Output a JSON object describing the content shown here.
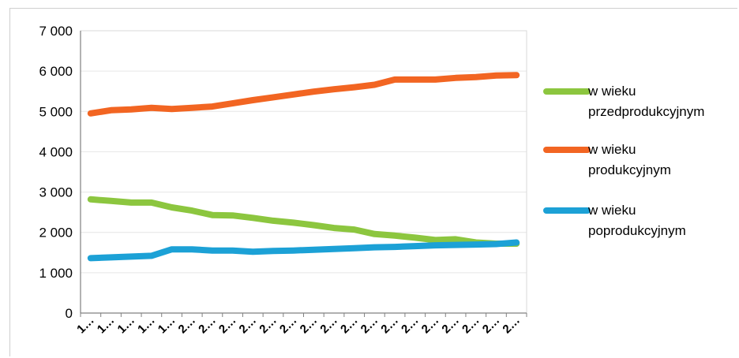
{
  "chart_data": {
    "type": "line",
    "title": "",
    "xlabel": "",
    "ylabel": "",
    "ylim": [
      0,
      7000
    ],
    "yticks": [
      0,
      1000,
      2000,
      3000,
      4000,
      5000,
      6000,
      7000
    ],
    "ytick_labels": [
      "0",
      "1 000",
      "2 000",
      "3 000",
      "4 000",
      "5 000",
      "6 000",
      "7 000"
    ],
    "x_tick_labels": [
      "1…",
      "1…",
      "1…",
      "1…",
      "1…",
      "2…",
      "2…",
      "2…",
      "2…",
      "2…",
      "2…",
      "2…",
      "2…",
      "2…",
      "2…",
      "2…",
      "2…",
      "2…",
      "2…",
      "2…",
      "2…",
      "2…"
    ],
    "grid": true,
    "legend_position": "right",
    "series": [
      {
        "name_lines": [
          "w wieku",
          "przedprodukcyjnym"
        ],
        "color": "#8cc63f",
        "values": [
          2820,
          2780,
          2740,
          2740,
          2620,
          2540,
          2430,
          2420,
          2360,
          2290,
          2240,
          2180,
          2110,
          2070,
          1960,
          1920,
          1870,
          1810,
          1830,
          1750,
          1720,
          1720
        ]
      },
      {
        "name_lines": [
          "w wieku",
          "produkcyjnym"
        ],
        "color": "#f26522",
        "values": [
          4950,
          5030,
          5050,
          5090,
          5060,
          5090,
          5120,
          5200,
          5280,
          5350,
          5420,
          5490,
          5550,
          5600,
          5660,
          5790,
          5790,
          5790,
          5830,
          5850,
          5890,
          5900
        ]
      },
      {
        "name_lines": [
          "w wieku",
          "poprodukcyjnym"
        ],
        "color": "#1ca1d6",
        "values": [
          1360,
          1380,
          1400,
          1420,
          1580,
          1580,
          1550,
          1550,
          1520,
          1540,
          1550,
          1570,
          1590,
          1610,
          1630,
          1640,
          1660,
          1680,
          1690,
          1700,
          1710,
          1750
        ]
      }
    ]
  }
}
